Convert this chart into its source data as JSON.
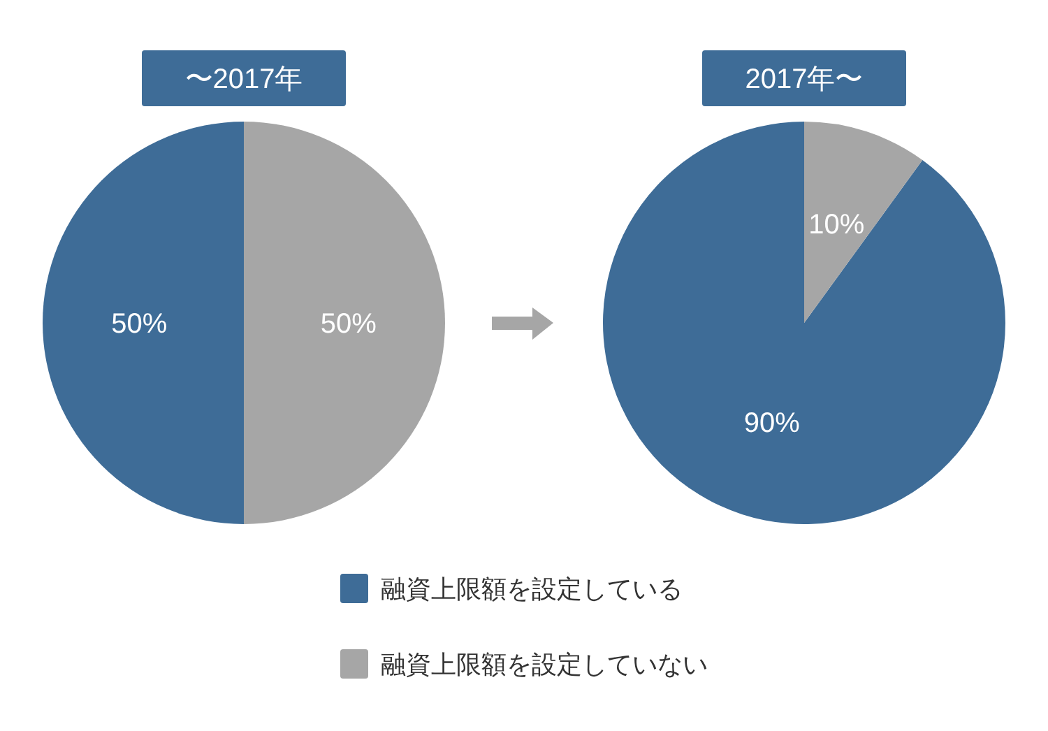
{
  "chart_data": {
    "type": "pie",
    "categories": [
      "融資上限額を設定している",
      "融資上限額を設定していない"
    ],
    "colors": [
      "#3e6c97",
      "#a6a6a6"
    ],
    "legend": "bottom",
    "series": [
      {
        "name": "〜2017年",
        "values": [
          50,
          50
        ],
        "value_labels": [
          "50%",
          "50%"
        ]
      },
      {
        "name": "2017年〜",
        "values": [
          90,
          10
        ],
        "value_labels": [
          "90%",
          "10%"
        ]
      }
    ]
  }
}
